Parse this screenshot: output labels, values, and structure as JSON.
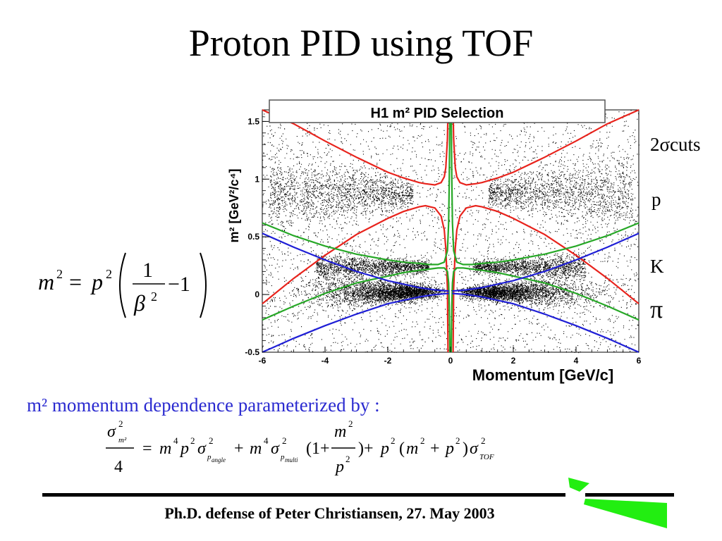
{
  "slide": {
    "title": "Proton PID using TOF",
    "footer": "Ph.D. defense of Peter Christiansen, 27. May 2003",
    "param_text": "m² momentum dependence parameterized by :",
    "text_color": "#2a2ad0"
  },
  "side_labels": {
    "cuts": "2σcuts",
    "p": "p",
    "k": "K",
    "pi": "π"
  },
  "chart_data": {
    "type": "scatter",
    "title": "H1 m² PID Selection",
    "xlabel": "Momentum [GeV/c]",
    "ylabel": "m² [GeV²/c⁴]",
    "xlim": [
      -6,
      6
    ],
    "ylim": [
      -0.5,
      1.6
    ],
    "x_ticks": [
      "-6",
      "-4",
      "-2",
      "0",
      "2",
      "4",
      "6"
    ],
    "y_ticks": [
      "-0.5",
      "0",
      "0.5",
      "1",
      "1.5"
    ],
    "grid": false,
    "series": [
      {
        "name": "p",
        "color": "#e8231c",
        "upper": {
          "x": [
            0.08,
            0.1,
            0.15,
            0.2,
            0.3,
            0.5,
            0.8,
            1,
            1.5,
            2,
            3,
            4,
            5,
            6
          ],
          "y": [
            1.6,
            1.35,
            1.1,
            1.02,
            0.97,
            0.95,
            0.96,
            0.97,
            1.01,
            1.06,
            1.19,
            1.33,
            1.48,
            1.65
          ]
        },
        "lower": {
          "x": [
            0.08,
            0.1,
            0.15,
            0.2,
            0.3,
            0.5,
            0.8,
            1,
            1.5,
            2,
            3,
            4,
            5,
            6
          ],
          "y": [
            -0.5,
            0.05,
            0.4,
            0.56,
            0.68,
            0.75,
            0.77,
            0.76,
            0.72,
            0.66,
            0.52,
            0.34,
            0.14,
            -0.08
          ]
        }
      },
      {
        "name": "K",
        "color": "#27a827",
        "upper": {
          "x": [
            0.02,
            0.04,
            0.06,
            0.1,
            0.2,
            0.4,
            0.7,
            1,
            1.5,
            2,
            3,
            4,
            5,
            6
          ],
          "y": [
            1.6,
            1.0,
            0.62,
            0.38,
            0.28,
            0.26,
            0.26,
            0.27,
            0.28,
            0.3,
            0.35,
            0.42,
            0.51,
            0.62
          ]
        },
        "lower": {
          "x": [
            0.02,
            0.04,
            0.06,
            0.1,
            0.2,
            0.4,
            0.7,
            1,
            1.5,
            2,
            3,
            4,
            5,
            6
          ],
          "y": [
            -0.5,
            -0.1,
            0.1,
            0.2,
            0.23,
            0.23,
            0.22,
            0.21,
            0.19,
            0.16,
            0.1,
            0.01,
            -0.1,
            -0.22
          ]
        }
      },
      {
        "name": "π",
        "color": "#1f1fd6",
        "upper": {
          "x": [
            0.05,
            0.5,
            1,
            2,
            3,
            4,
            5,
            6
          ],
          "y": [
            0.03,
            0.04,
            0.06,
            0.12,
            0.2,
            0.3,
            0.41,
            0.53
          ]
        },
        "lower": {
          "x": [
            0.05,
            0.5,
            1,
            2,
            3,
            4,
            5,
            6
          ],
          "y": [
            0.01,
            0.0,
            -0.02,
            -0.08,
            -0.17,
            -0.27,
            -0.38,
            -0.5
          ]
        }
      }
    ],
    "symmetric_in_x": true,
    "clusters": [
      {
        "name": "π",
        "x_range": [
          -6,
          6
        ],
        "y_center": 0.02,
        "y_spread": 0.06
      },
      {
        "name": "K",
        "x_range": [
          -6,
          6
        ],
        "y_center": 0.24,
        "y_spread": 0.05
      },
      {
        "name": "p",
        "x_range": [
          -6,
          6
        ],
        "y_center": 0.88,
        "y_spread": 0.1
      }
    ]
  },
  "logo": {
    "color": "#22ee11"
  }
}
